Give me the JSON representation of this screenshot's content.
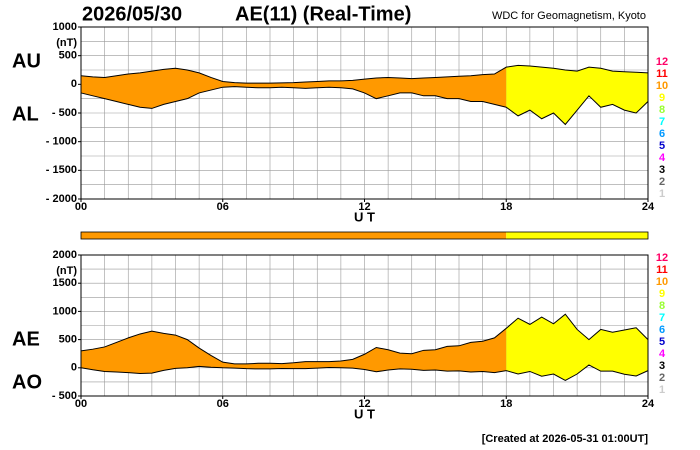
{
  "date": "2026/05/30",
  "title": "AE(11) (Real-Time)",
  "source": "WDC for Geomagnetism, Kyoto",
  "footer": "[Created at 2026-05-31 01:00UT]",
  "level_legend": [
    {
      "label": "12",
      "color": "#ff0066"
    },
    {
      "label": "11",
      "color": "#ff0000"
    },
    {
      "label": "10",
      "color": "#ff9900"
    },
    {
      "label": "9",
      "color": "#ffff00"
    },
    {
      "label": "8",
      "color": "#99ff33"
    },
    {
      "label": "7",
      "color": "#00ffff"
    },
    {
      "label": "6",
      "color": "#0099ff"
    },
    {
      "label": "5",
      "color": "#0000cc"
    },
    {
      "label": "4",
      "color": "#ff00ff"
    },
    {
      "label": "3",
      "color": "#000000"
    },
    {
      "label": "2",
      "color": "#666666"
    },
    {
      "label": "1",
      "color": "#cccccc"
    }
  ],
  "activity_bands": [
    {
      "start": 0,
      "end": 18,
      "color": "#ff9900"
    },
    {
      "start": 18,
      "end": 24,
      "color": "#ffff00"
    }
  ],
  "chart_data": [
    {
      "type": "range",
      "unit": "(nT)",
      "x_label": "U T",
      "x": [
        0,
        0.5,
        1,
        1.5,
        2,
        2.5,
        3,
        3.5,
        4,
        4.5,
        5,
        5.5,
        6,
        6.5,
        7,
        7.5,
        8,
        8.5,
        9,
        9.5,
        10,
        10.5,
        11,
        11.5,
        12,
        12.5,
        13,
        13.5,
        14,
        14.5,
        15,
        15.5,
        16,
        16.5,
        17,
        17.5,
        18,
        18.5,
        19,
        19.5,
        20,
        20.5,
        21,
        21.5,
        22,
        22.5,
        23,
        23.5,
        24
      ],
      "xlim": [
        0,
        24
      ],
      "xticks": [
        {
          "value": 0,
          "label": "00"
        },
        {
          "value": 6,
          "label": "06"
        },
        {
          "value": 12,
          "label": "12"
        },
        {
          "value": 18,
          "label": "18"
        },
        {
          "value": 24,
          "label": "24"
        }
      ],
      "ylim": [
        -2000,
        1000
      ],
      "yticks": [
        1000,
        500,
        0,
        {
          "value": -500,
          "label": "- 500"
        },
        {
          "value": -1000,
          "label": "- 1000"
        },
        {
          "value": -1500,
          "label": "- 1500"
        },
        {
          "value": -2000,
          "label": "- 2000"
        }
      ],
      "grid": true,
      "grid_step_x": 1,
      "grid_step_y": 250,
      "series": [
        {
          "name": "AU",
          "color": "#000000",
          "values": [
            150,
            130,
            120,
            150,
            180,
            200,
            230,
            260,
            280,
            250,
            200,
            120,
            50,
            30,
            20,
            20,
            20,
            25,
            30,
            40,
            50,
            60,
            60,
            70,
            90,
            110,
            120,
            110,
            100,
            110,
            120,
            130,
            140,
            150,
            170,
            180,
            300,
            330,
            320,
            300,
            280,
            250,
            230,
            300,
            280,
            230,
            220,
            210,
            200
          ]
        },
        {
          "name": "AL",
          "color": "#000000",
          "values": [
            -150,
            -200,
            -250,
            -300,
            -350,
            -400,
            -420,
            -350,
            -300,
            -250,
            -150,
            -100,
            -50,
            -40,
            -50,
            -60,
            -60,
            -50,
            -60,
            -70,
            -60,
            -50,
            -60,
            -80,
            -150,
            -250,
            -200,
            -150,
            -150,
            -200,
            -200,
            -250,
            -250,
            -300,
            -300,
            -350,
            -400,
            -550,
            -450,
            -600,
            -500,
            -700,
            -450,
            -200,
            -400,
            -350,
            -450,
            -500,
            -300
          ]
        }
      ]
    },
    {
      "type": "range",
      "unit": "(nT)",
      "x_label": "U T",
      "x": [
        0,
        0.5,
        1,
        1.5,
        2,
        2.5,
        3,
        3.5,
        4,
        4.5,
        5,
        5.5,
        6,
        6.5,
        7,
        7.5,
        8,
        8.5,
        9,
        9.5,
        10,
        10.5,
        11,
        11.5,
        12,
        12.5,
        13,
        13.5,
        14,
        14.5,
        15,
        15.5,
        16,
        16.5,
        17,
        17.5,
        18,
        18.5,
        19,
        19.5,
        20,
        20.5,
        21,
        21.5,
        22,
        22.5,
        23,
        23.5,
        24
      ],
      "xlim": [
        0,
        24
      ],
      "xticks": [
        {
          "value": 0,
          "label": "00"
        },
        {
          "value": 6,
          "label": "06"
        },
        {
          "value": 12,
          "label": "12"
        },
        {
          "value": 18,
          "label": "18"
        },
        {
          "value": 24,
          "label": "24"
        }
      ],
      "ylim": [
        -500,
        2000
      ],
      "yticks": [
        2000,
        1500,
        1000,
        500,
        0,
        {
          "value": -500,
          "label": "- 500"
        }
      ],
      "grid": true,
      "grid_step_x": 1,
      "grid_step_y": 250,
      "series": [
        {
          "name": "AE",
          "color": "#000000",
          "values": [
            300,
            330,
            370,
            450,
            530,
            600,
            650,
            610,
            580,
            500,
            350,
            220,
            100,
            70,
            70,
            80,
            80,
            75,
            90,
            110,
            110,
            110,
            120,
            150,
            240,
            360,
            320,
            260,
            250,
            310,
            320,
            380,
            390,
            450,
            470,
            530,
            700,
            880,
            770,
            900,
            780,
            950,
            680,
            500,
            680,
            630,
            670,
            710,
            500
          ]
        },
        {
          "name": "AO",
          "color": "#000000",
          "values": [
            0,
            -35,
            -65,
            -75,
            -85,
            -100,
            -95,
            -45,
            -10,
            0,
            25,
            10,
            0,
            -5,
            -15,
            -20,
            -20,
            -12,
            -15,
            -15,
            -5,
            5,
            0,
            -5,
            -30,
            -70,
            -40,
            -20,
            -25,
            -45,
            -40,
            -60,
            -55,
            -75,
            -65,
            -85,
            -50,
            -110,
            -65,
            -150,
            -110,
            -225,
            -110,
            50,
            -60,
            -60,
            -115,
            -145,
            -50
          ]
        }
      ]
    }
  ]
}
